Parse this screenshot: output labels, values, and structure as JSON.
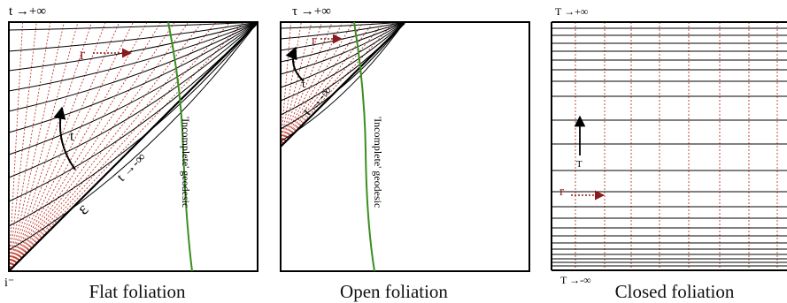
{
  "panels": [
    {
      "id": "flat",
      "caption": "Flat foliation",
      "top_label": "t →+∞",
      "bottom_label": "i⁻",
      "diag_label": "t →-∞",
      "curve_label": "t",
      "r_label": "r",
      "scri_label": "ε",
      "geodesic_label": "'Incomplete' geodesic"
    },
    {
      "id": "open",
      "caption": "Open foliation",
      "top_label": "τ →+∞",
      "diag_label": "τ →-∞",
      "curve_label": "τ",
      "r_label": "r",
      "geodesic_label": "'Incomplete' geodesic"
    },
    {
      "id": "closed",
      "caption": "Closed foliation",
      "top_label": "T →+∞",
      "bottom_label": "T →-∞",
      "curve_label": "T",
      "r_label": "r"
    }
  ],
  "colors": {
    "slice": "#000000",
    "radial": "#c0392b",
    "geodesic": "#3a8f1e",
    "arrow_red": "#8b1a1a"
  }
}
